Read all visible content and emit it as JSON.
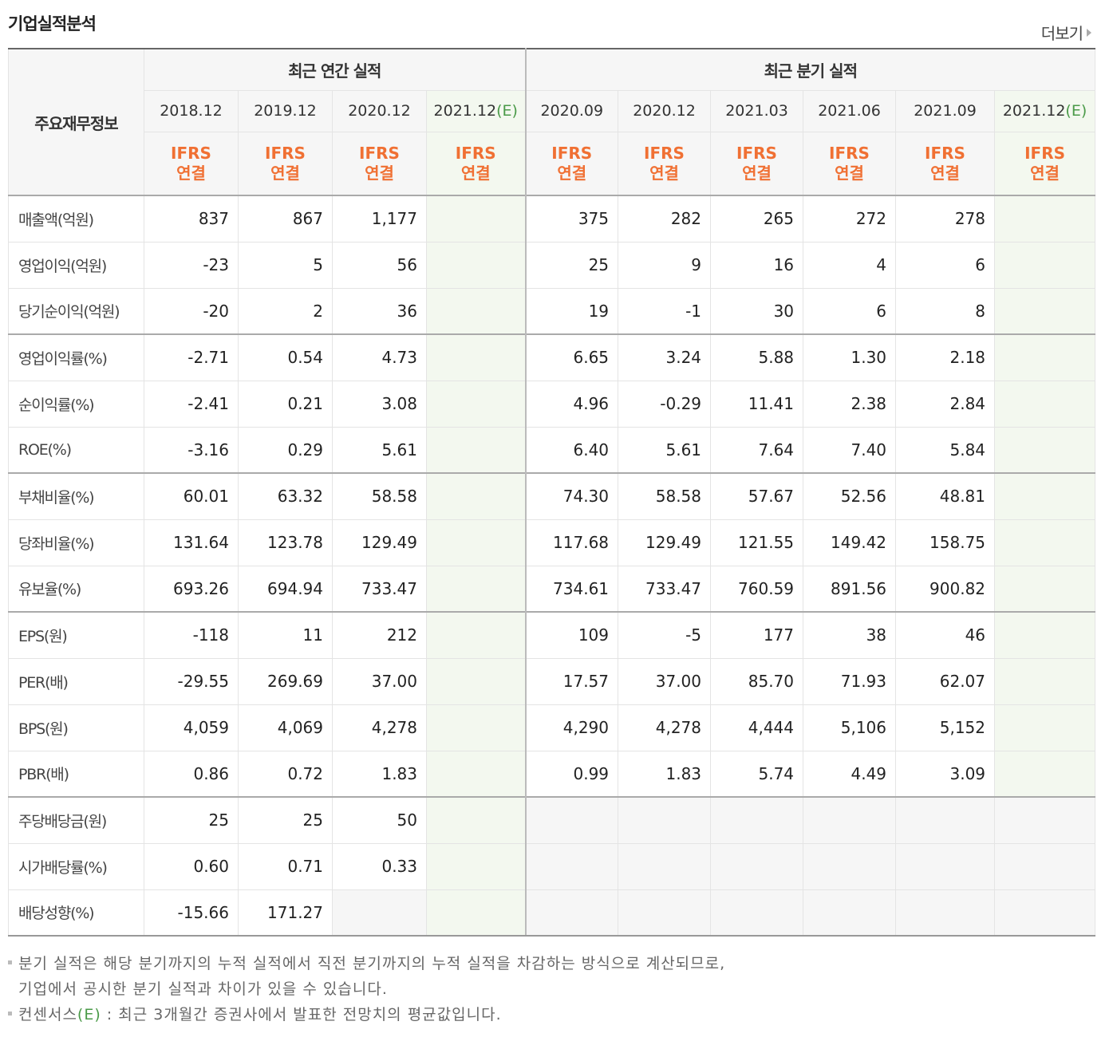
{
  "header": {
    "title": "기업실적분석",
    "more_label": "더보기"
  },
  "table": {
    "corner_label": "주요재무정보",
    "group_annual": "최근 연간 실적",
    "group_quarter": "최근 분기 실적",
    "est_mark": "(E)",
    "periods": [
      {
        "label": "2018.12",
        "est": false
      },
      {
        "label": "2019.12",
        "est": false
      },
      {
        "label": "2020.12",
        "est": false
      },
      {
        "label": "2021.12",
        "est": true
      },
      {
        "label": "2020.09",
        "est": false
      },
      {
        "label": "2020.12",
        "est": false
      },
      {
        "label": "2021.03",
        "est": false
      },
      {
        "label": "2021.06",
        "est": false
      },
      {
        "label": "2021.09",
        "est": false
      },
      {
        "label": "2021.12",
        "est": true
      }
    ],
    "basis_line1": "IFRS",
    "basis_line2": "연결",
    "rows": [
      {
        "label": "매출액(억원)",
        "group_start": true,
        "values": [
          "837",
          "867",
          "1,177",
          "",
          "375",
          "282",
          "265",
          "272",
          "278",
          ""
        ]
      },
      {
        "label": "영업이익(억원)",
        "values": [
          "-23",
          "5",
          "56",
          "",
          "25",
          "9",
          "16",
          "4",
          "6",
          ""
        ]
      },
      {
        "label": "당기순이익(억원)",
        "values": [
          "-20",
          "2",
          "36",
          "",
          "19",
          "-1",
          "30",
          "6",
          "8",
          ""
        ]
      },
      {
        "label": "영업이익률(%)",
        "group_start": true,
        "values": [
          "-2.71",
          "0.54",
          "4.73",
          "",
          "6.65",
          "3.24",
          "5.88",
          "1.30",
          "2.18",
          ""
        ]
      },
      {
        "label": "순이익률(%)",
        "values": [
          "-2.41",
          "0.21",
          "3.08",
          "",
          "4.96",
          "-0.29",
          "11.41",
          "2.38",
          "2.84",
          ""
        ]
      },
      {
        "label": "ROE(%)",
        "values": [
          "-3.16",
          "0.29",
          "5.61",
          "",
          "6.40",
          "5.61",
          "7.64",
          "7.40",
          "5.84",
          ""
        ]
      },
      {
        "label": "부채비율(%)",
        "group_start": true,
        "values": [
          "60.01",
          "63.32",
          "58.58",
          "",
          "74.30",
          "58.58",
          "57.67",
          "52.56",
          "48.81",
          ""
        ]
      },
      {
        "label": "당좌비율(%)",
        "values": [
          "131.64",
          "123.78",
          "129.49",
          "",
          "117.68",
          "129.49",
          "121.55",
          "149.42",
          "158.75",
          ""
        ]
      },
      {
        "label": "유보율(%)",
        "values": [
          "693.26",
          "694.94",
          "733.47",
          "",
          "734.61",
          "733.47",
          "760.59",
          "891.56",
          "900.82",
          ""
        ]
      },
      {
        "label": "EPS(원)",
        "group_start": true,
        "values": [
          "-118",
          "11",
          "212",
          "",
          "109",
          "-5",
          "177",
          "38",
          "46",
          ""
        ]
      },
      {
        "label": "PER(배)",
        "values": [
          "-29.55",
          "269.69",
          "37.00",
          "",
          "17.57",
          "37.00",
          "85.70",
          "71.93",
          "62.07",
          ""
        ]
      },
      {
        "label": "BPS(원)",
        "values": [
          "4,059",
          "4,069",
          "4,278",
          "",
          "4,290",
          "4,278",
          "4,444",
          "5,106",
          "5,152",
          ""
        ]
      },
      {
        "label": "PBR(배)",
        "values": [
          "0.86",
          "0.72",
          "1.83",
          "",
          "0.99",
          "1.83",
          "5.74",
          "4.49",
          "3.09",
          ""
        ]
      },
      {
        "label": "주당배당금(원)",
        "group_start": true,
        "quarter_empty": true,
        "values": [
          "25",
          "25",
          "50",
          "",
          "",
          "",
          "",
          "",
          "",
          ""
        ]
      },
      {
        "label": "시가배당률(%)",
        "quarter_empty": true,
        "values": [
          "0.60",
          "0.71",
          "0.33",
          "",
          "",
          "",
          "",
          "",
          "",
          ""
        ]
      },
      {
        "label": "배당성향(%)",
        "quarter_empty": true,
        "empty_cols": [
          2
        ],
        "values": [
          "-15.66",
          "171.27",
          "",
          "",
          "",
          "",
          "",
          "",
          "",
          ""
        ]
      }
    ]
  },
  "notes": {
    "line1": "분기 실적은 해당 분기까지의 누적 실적에서 직전 분기까지의 누적 실적을 차감하는 방식으로 계산되므로,",
    "line2": "기업에서 공시한 분기 실적과 차이가 있을 수 있습니다.",
    "line3_prefix": "컨센서스",
    "line3_mark": "(E)",
    "line3_suffix": " : 최근 3개월간 증권사에서 발표한 전망치의 평균값입니다."
  },
  "colors": {
    "negative": "#dd1f1f",
    "ifrs": "#f07033",
    "estimate_bg": "#f3f8ef",
    "estimate_mark": "#4a9a48"
  }
}
